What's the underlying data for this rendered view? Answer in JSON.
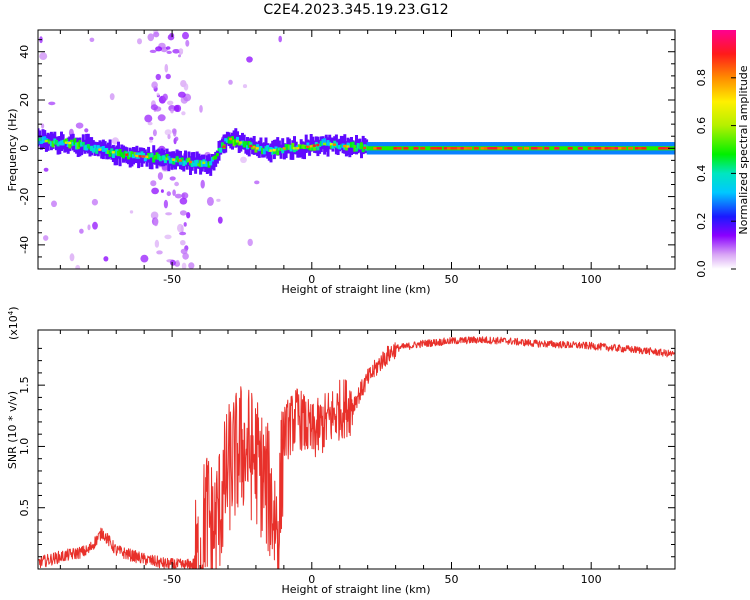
{
  "title": "C2E4.2023.345.19.23.G12",
  "chart_data": [
    {
      "type": "heatmap",
      "name": "spectrogram",
      "xlabel": "Height of straight line (km)",
      "ylabel": "Frequency (Hz)",
      "xlim": [
        -98,
        130
      ],
      "ylim": [
        -50,
        49
      ],
      "xticks": [
        -50,
        0,
        50,
        100
      ],
      "yticks": [
        -40,
        -20,
        0,
        20,
        40
      ],
      "colorbar": {
        "label": "Normalized spectral amplitude",
        "range": [
          0,
          1
        ],
        "ticks": [
          0.0,
          0.2,
          0.4,
          0.6,
          0.8
        ]
      },
      "ridge": [
        {
          "x": -96,
          "y": 3
        },
        {
          "x": -85,
          "y": 2
        },
        {
          "x": -75,
          "y": -1
        },
        {
          "x": -65,
          "y": -3
        },
        {
          "x": -55,
          "y": -4
        },
        {
          "x": -48,
          "y": -5
        },
        {
          "x": -42,
          "y": -6
        },
        {
          "x": -36,
          "y": -6
        },
        {
          "x": -30,
          "y": 4
        },
        {
          "x": -25,
          "y": 2
        },
        {
          "x": -20,
          "y": 0
        },
        {
          "x": -15,
          "y": -1
        },
        {
          "x": -10,
          "y": 0
        },
        {
          "x": -5,
          "y": 0
        },
        {
          "x": 0,
          "y": 1
        },
        {
          "x": 5,
          "y": 2
        },
        {
          "x": 10,
          "y": 1
        },
        {
          "x": 20,
          "y": 0
        },
        {
          "x": 130,
          "y": 0
        }
      ]
    },
    {
      "type": "line",
      "name": "snr",
      "xlabel": "Height of straight line (km)",
      "ylabel": "SNR (10 * v/v)",
      "multiplier": "(x10",
      "multiplier_exp": "4",
      "multiplier_close": ")",
      "xlim": [
        -98,
        130
      ],
      "ylim": [
        0,
        1.95
      ],
      "xticks": [
        -50,
        0,
        50,
        100
      ],
      "yticks": [
        0.5,
        1.0,
        1.5
      ],
      "color": "#e8302a",
      "x": [
        -98,
        -90,
        -80,
        -75,
        -70,
        -60,
        -52,
        -45,
        -40,
        -38,
        -35,
        -30,
        -25,
        -20,
        -15,
        -12,
        -10,
        -5,
        0,
        5,
        10,
        15,
        20,
        25,
        30,
        40,
        50,
        60,
        70,
        80,
        90,
        100,
        110,
        120,
        130
      ],
      "values": [
        0.05,
        0.1,
        0.15,
        0.3,
        0.15,
        0.08,
        0.04,
        0.03,
        0.05,
        0.5,
        0.3,
        0.8,
        1.0,
        0.9,
        0.6,
        0.3,
        1.1,
        1.25,
        1.1,
        1.2,
        1.3,
        1.35,
        1.55,
        1.7,
        1.8,
        1.84,
        1.86,
        1.87,
        1.86,
        1.84,
        1.83,
        1.82,
        1.8,
        1.78,
        1.75
      ]
    }
  ]
}
